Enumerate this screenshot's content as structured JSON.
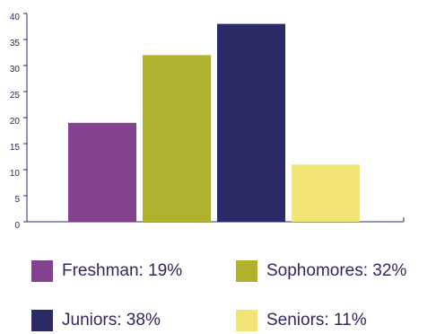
{
  "chart_data": {
    "type": "bar",
    "categories": [
      "Freshman",
      "Sophomores",
      "Juniors",
      "Seniors"
    ],
    "values": [
      19,
      32,
      38,
      11
    ],
    "colors": [
      "#84418f",
      "#b0b12d",
      "#2d2a68",
      "#f1e674"
    ],
    "ylim": [
      0,
      40
    ],
    "yticks": [
      "0",
      "5",
      "10",
      "15",
      "20",
      "25",
      "30",
      "35",
      "40"
    ],
    "grid": false,
    "legend_position": "bottom",
    "title": "",
    "xlabel": "",
    "ylabel": ""
  },
  "legend": [
    {
      "label": "Freshman: 19%",
      "color": "#84418f"
    },
    {
      "label": "Sophomores: 32%",
      "color": "#b0b12d"
    },
    {
      "label": "Juniors: 38%",
      "color": "#2d2a68"
    },
    {
      "label": "Seniors: 11%",
      "color": "#f1e674"
    }
  ]
}
